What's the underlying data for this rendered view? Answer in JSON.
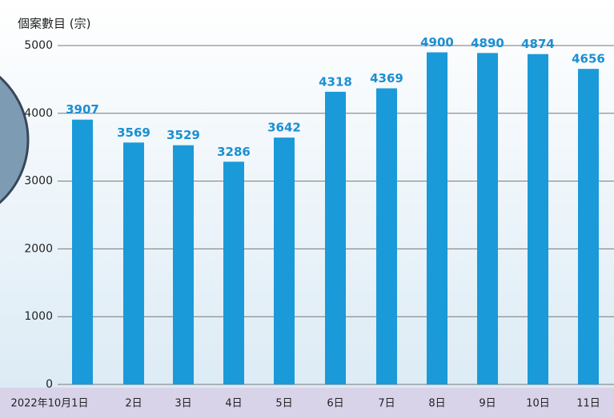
{
  "chart_data": {
    "type": "bar",
    "y_label": "個案數目 (宗)",
    "categories": [
      "2022年10月1日",
      "2日",
      "3日",
      "4日",
      "5日",
      "6日",
      "7日",
      "8日",
      "9日",
      "10日",
      "11日"
    ],
    "values": [
      3907,
      3569,
      3529,
      3286,
      3642,
      4318,
      4369,
      4900,
      4890,
      4874,
      4656
    ],
    "color": "#1a9ad8",
    "ylim": [
      0,
      5000
    ],
    "yticks": [
      0,
      1000,
      2000,
      3000,
      4000,
      5000
    ],
    "grid": true
  }
}
